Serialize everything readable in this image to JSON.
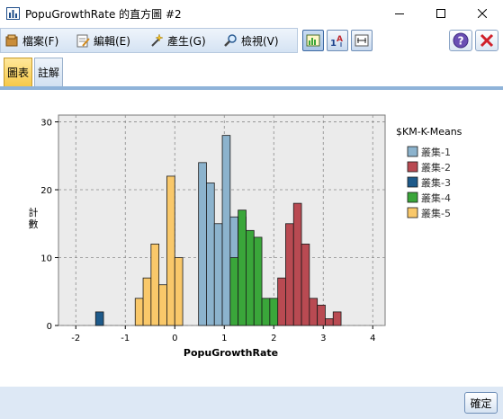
{
  "window": {
    "title": "PopuGrowthRate 的直方圖 #2",
    "icon": "bar-chart-icon"
  },
  "menu": {
    "file": "檔案(F)",
    "edit": "編輯(E)",
    "generate": "產生(G)",
    "view": "檢視(V)"
  },
  "tabs": {
    "chart": "圖表",
    "notes": "註解"
  },
  "footer": {
    "ok_label": "確定"
  },
  "chart_data": {
    "type": "bar",
    "xlabel": "PopuGrowthRate",
    "ylabel": "計數",
    "xlim": [
      -2.35,
      4.25
    ],
    "ylim": [
      0,
      31
    ],
    "xticks": [
      -2,
      -1,
      0,
      1,
      2,
      3,
      4
    ],
    "yticks": [
      0,
      10,
      20,
      30
    ],
    "grid": true,
    "legend_title": "$KM-K-Means",
    "legend_position": "right",
    "bin_width": 0.16,
    "series": [
      {
        "name": "叢集-1",
        "color": "#8cb3cd",
        "bins": [
          [
            0.48,
            24
          ],
          [
            0.64,
            21
          ],
          [
            0.8,
            15
          ],
          [
            0.96,
            28
          ],
          [
            1.12,
            16
          ],
          [
            1.28,
            16
          ]
        ]
      },
      {
        "name": "叢集-2",
        "color": "#b94a52",
        "bins": [
          [
            2.08,
            7
          ],
          [
            2.24,
            15
          ],
          [
            2.4,
            18
          ],
          [
            2.56,
            12
          ],
          [
            2.72,
            4
          ],
          [
            2.88,
            3
          ],
          [
            3.04,
            1
          ],
          [
            3.2,
            2
          ]
        ]
      },
      {
        "name": "叢集-3",
        "color": "#1e5a8a",
        "bins": [
          [
            -1.6,
            2
          ]
        ]
      },
      {
        "name": "叢集-4",
        "color": "#3aa63a",
        "bins": [
          [
            1.12,
            10
          ],
          [
            1.28,
            17
          ],
          [
            1.44,
            14
          ],
          [
            1.6,
            13
          ],
          [
            1.76,
            4
          ],
          [
            1.92,
            4
          ]
        ]
      },
      {
        "name": "叢集-5",
        "color": "#f9c86a",
        "bins": [
          [
            -0.8,
            4
          ],
          [
            -0.64,
            7
          ],
          [
            -0.48,
            12
          ],
          [
            -0.32,
            6
          ],
          [
            -0.16,
            22
          ],
          [
            0.0,
            10
          ]
        ]
      }
    ]
  }
}
